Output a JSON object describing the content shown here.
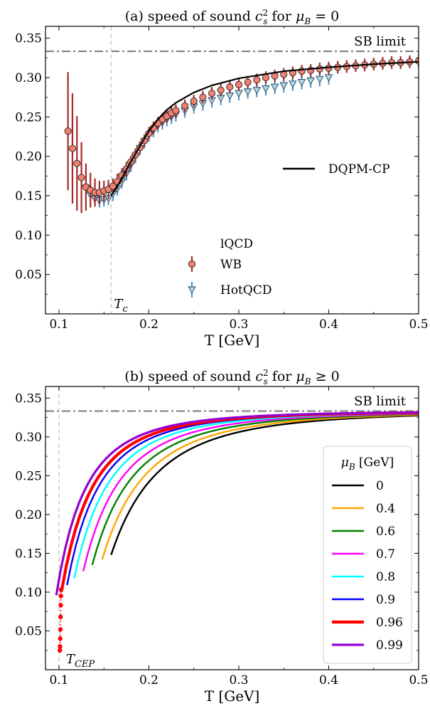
{
  "chart_data": [
    {
      "type": "line",
      "title": "(a) speed of sound c²ₛ for μ_B = 0",
      "title_parts": [
        "(a) speed of sound ",
        "c",
        "2",
        "s",
        " for ",
        "μ",
        "B",
        " = 0"
      ],
      "xlabel": "T [GeV]",
      "ylabel": "",
      "xlim": [
        0.085,
        0.5
      ],
      "ylim": [
        0.0,
        0.365
      ],
      "x_ticks": [
        "0.1",
        "0.2",
        "0.3",
        "0.4",
        "0.5"
      ],
      "y_ticks": [
        "0.05",
        "0.10",
        "0.15",
        "0.20",
        "0.25",
        "0.30",
        "0.35"
      ],
      "sb_limit": {
        "label": "SB limit",
        "value": 0.3333
      },
      "tc": {
        "label": "T",
        "sub": "c",
        "value": 0.158
      },
      "series": [
        {
          "name": "DQPM-CP",
          "color": "#000000",
          "x": [
            0.158,
            0.165,
            0.17,
            0.175,
            0.18,
            0.19,
            0.2,
            0.21,
            0.22,
            0.23,
            0.25,
            0.27,
            0.3,
            0.35,
            0.4,
            0.45,
            0.5
          ],
          "y": [
            0.15,
            0.162,
            0.172,
            0.183,
            0.193,
            0.213,
            0.232,
            0.247,
            0.259,
            0.268,
            0.281,
            0.29,
            0.299,
            0.308,
            0.313,
            0.317,
            0.32
          ]
        },
        {
          "name": "WB",
          "group": "lQCD",
          "color": "#f08070",
          "x": [
            0.11,
            0.115,
            0.12,
            0.125,
            0.13,
            0.135,
            0.14,
            0.145,
            0.15,
            0.155,
            0.16,
            0.165,
            0.17,
            0.175,
            0.18,
            0.185,
            0.19,
            0.195,
            0.2,
            0.205,
            0.21,
            0.215,
            0.22,
            0.225,
            0.23,
            0.24,
            0.25,
            0.26,
            0.27,
            0.28,
            0.29,
            0.3,
            0.31,
            0.32,
            0.33,
            0.34,
            0.35,
            0.36,
            0.37,
            0.38,
            0.39,
            0.4,
            0.41,
            0.42,
            0.43,
            0.44,
            0.45,
            0.46,
            0.47,
            0.48,
            0.49,
            0.5
          ],
          "y": [
            0.232,
            0.21,
            0.191,
            0.173,
            0.161,
            0.157,
            0.154,
            0.154,
            0.156,
            0.158,
            0.162,
            0.168,
            0.176,
            0.184,
            0.193,
            0.202,
            0.211,
            0.22,
            0.229,
            0.236,
            0.242,
            0.247,
            0.251,
            0.255,
            0.258,
            0.264,
            0.27,
            0.275,
            0.28,
            0.284,
            0.288,
            0.291,
            0.294,
            0.297,
            0.3,
            0.302,
            0.304,
            0.306,
            0.308,
            0.309,
            0.311,
            0.312,
            0.313,
            0.314,
            0.315,
            0.316,
            0.317,
            0.318,
            0.319,
            0.319,
            0.32,
            0.321
          ],
          "err": [
            0.075,
            0.07,
            0.06,
            0.045,
            0.03,
            0.022,
            0.018,
            0.015,
            0.013,
            0.012,
            0.01,
            0.01,
            0.009,
            0.009,
            0.008,
            0.008,
            0.008,
            0.008,
            0.008,
            0.008,
            0.008,
            0.008,
            0.008,
            0.008,
            0.008,
            0.008,
            0.008,
            0.008,
            0.008,
            0.008,
            0.008,
            0.008,
            0.008,
            0.008,
            0.008,
            0.008,
            0.008,
            0.008,
            0.008,
            0.008,
            0.008,
            0.008,
            0.008,
            0.008,
            0.008,
            0.008,
            0.008,
            0.008,
            0.008,
            0.008,
            0.008,
            0.008
          ]
        },
        {
          "name": "HotQCD",
          "group": "lQCD",
          "color": "#add8e6",
          "x": [
            0.13,
            0.135,
            0.14,
            0.145,
            0.15,
            0.155,
            0.16,
            0.165,
            0.17,
            0.175,
            0.18,
            0.185,
            0.19,
            0.195,
            0.2,
            0.205,
            0.21,
            0.215,
            0.22,
            0.225,
            0.23,
            0.24,
            0.25,
            0.26,
            0.27,
            0.28,
            0.29,
            0.3,
            0.31,
            0.32,
            0.33,
            0.34,
            0.35,
            0.36,
            0.37,
            0.38,
            0.39,
            0.4
          ],
          "y": [
            0.16,
            0.151,
            0.146,
            0.144,
            0.145,
            0.147,
            0.152,
            0.159,
            0.168,
            0.178,
            0.189,
            0.2,
            0.21,
            0.219,
            0.227,
            0.233,
            0.239,
            0.243,
            0.247,
            0.25,
            0.253,
            0.258,
            0.263,
            0.267,
            0.271,
            0.274,
            0.277,
            0.28,
            0.282,
            0.284,
            0.286,
            0.288,
            0.29,
            0.292,
            0.294,
            0.296,
            0.298,
            0.3
          ],
          "err": [
            0.01,
            0.01,
            0.009,
            0.009,
            0.009,
            0.009,
            0.009,
            0.009,
            0.009,
            0.009,
            0.009,
            0.009,
            0.009,
            0.009,
            0.009,
            0.009,
            0.009,
            0.009,
            0.009,
            0.009,
            0.009,
            0.009,
            0.009,
            0.009,
            0.009,
            0.009,
            0.009,
            0.009,
            0.009,
            0.009,
            0.009,
            0.009,
            0.009,
            0.009,
            0.009,
            0.009,
            0.009,
            0.009
          ]
        }
      ],
      "legend_title": "lQCD"
    },
    {
      "type": "line",
      "title": "(b) speed of sound c²ₛ for μ_B ≥ 0",
      "title_parts": [
        "(b) speed of sound ",
        "c",
        "2",
        "s",
        " for ",
        "μ",
        "B",
        " ≥ 0"
      ],
      "xlabel": "T [GeV]",
      "ylabel": "",
      "xlim": [
        0.085,
        0.5
      ],
      "ylim": [
        0.0,
        0.365
      ],
      "x_ticks": [
        "0.1",
        "0.2",
        "0.3",
        "0.4",
        "0.5"
      ],
      "y_ticks": [
        "0.05",
        "0.10",
        "0.15",
        "0.20",
        "0.25",
        "0.30",
        "0.35"
      ],
      "sb_limit": {
        "label": "SB limit",
        "value": 0.3333
      },
      "tcep": {
        "label": "T",
        "sub": "CEP",
        "value": 0.1
      },
      "legend_title": "μ_B [GeV]",
      "legend_title_parts": [
        "μ",
        "B",
        " [GeV]"
      ],
      "series": [
        {
          "name": "0",
          "color": "#000000",
          "t0": 0.158,
          "s0": 0.148
        },
        {
          "name": "0.4",
          "color": "#ffa500",
          "t0": 0.148,
          "s0": 0.142
        },
        {
          "name": "0.6",
          "color": "#008000",
          "t0": 0.137,
          "s0": 0.135
        },
        {
          "name": "0.7",
          "color": "#ff00ff",
          "t0": 0.127,
          "s0": 0.127
        },
        {
          "name": "0.8",
          "color": "#00ffff",
          "t0": 0.117,
          "s0": 0.118
        },
        {
          "name": "0.9",
          "color": "#0000ff",
          "t0": 0.109,
          "s0": 0.109
        },
        {
          "name": "0.96",
          "color": "#ff0000",
          "t0": 0.103,
          "s0": 0.102
        },
        {
          "name": "0.99",
          "color": "#9400d3",
          "t0": 0.097,
          "s0": 0.096
        }
      ],
      "cep_points": {
        "color": "#ff0000",
        "x": [
          0.101,
          0.1012,
          0.1014,
          0.1016,
          0.1018,
          0.102,
          0.1022,
          0.1024
        ],
        "y": [
          0.025,
          0.03,
          0.04,
          0.052,
          0.068,
          0.083,
          0.095,
          0.103
        ]
      }
    }
  ]
}
